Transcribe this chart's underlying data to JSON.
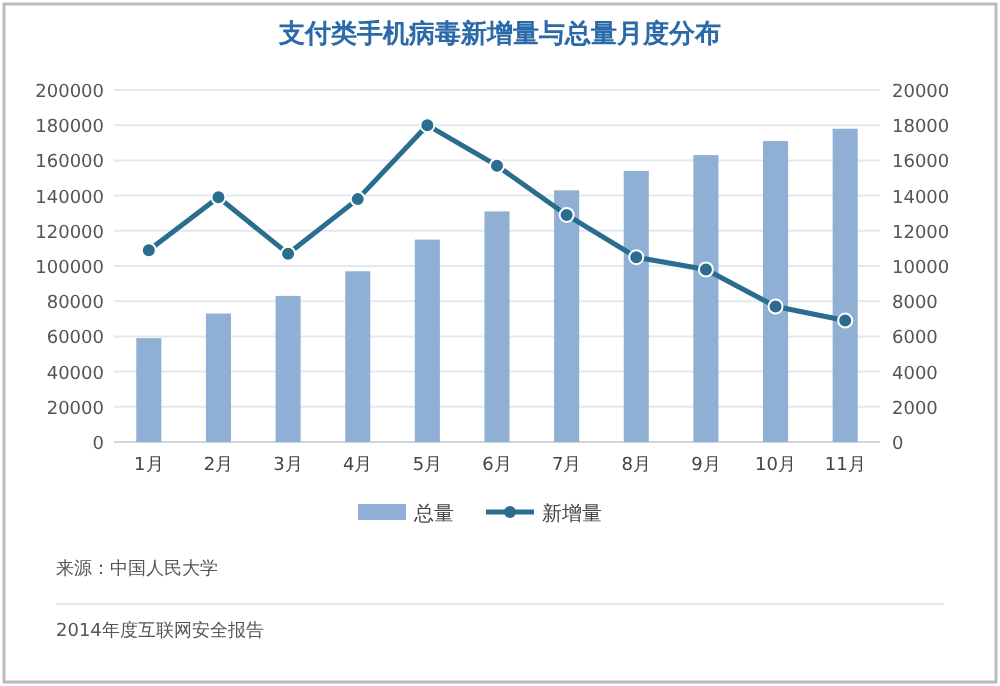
{
  "chart_data": {
    "type": "bar",
    "title": "支付类手机病毒新增量与总量月度分布",
    "categories": [
      "1月",
      "2月",
      "3月",
      "4月",
      "5月",
      "6月",
      "7月",
      "8月",
      "9月",
      "10月",
      "11月"
    ],
    "series": [
      {
        "name": "总量",
        "color": "#8fb0d4",
        "values": [
          59000,
          73000,
          83000,
          97000,
          115000,
          131000,
          143000,
          154000,
          163000,
          171000,
          178000
        ]
      },
      {
        "name": "新增量",
        "type": "line",
        "axis": "y2",
        "color": "#2a6d8f",
        "marker": "circle",
        "values": [
          10900,
          13900,
          10700,
          13800,
          18000,
          15700,
          12900,
          10500,
          9800,
          7700,
          6900
        ]
      }
    ],
    "ylim": [
      0,
      200000
    ],
    "yticks": [
      0,
      20000,
      40000,
      60000,
      80000,
      100000,
      120000,
      140000,
      160000,
      180000,
      200000
    ],
    "y2lim": [
      0,
      20000
    ],
    "y2ticks": [
      0,
      2000,
      4000,
      6000,
      8000,
      10000,
      12000,
      14000,
      16000,
      18000,
      20000
    ],
    "grid": "y",
    "legend": "bottom",
    "annotations": [
      "来源：中国人民大学",
      "2014年度互联网安全报告"
    ]
  }
}
